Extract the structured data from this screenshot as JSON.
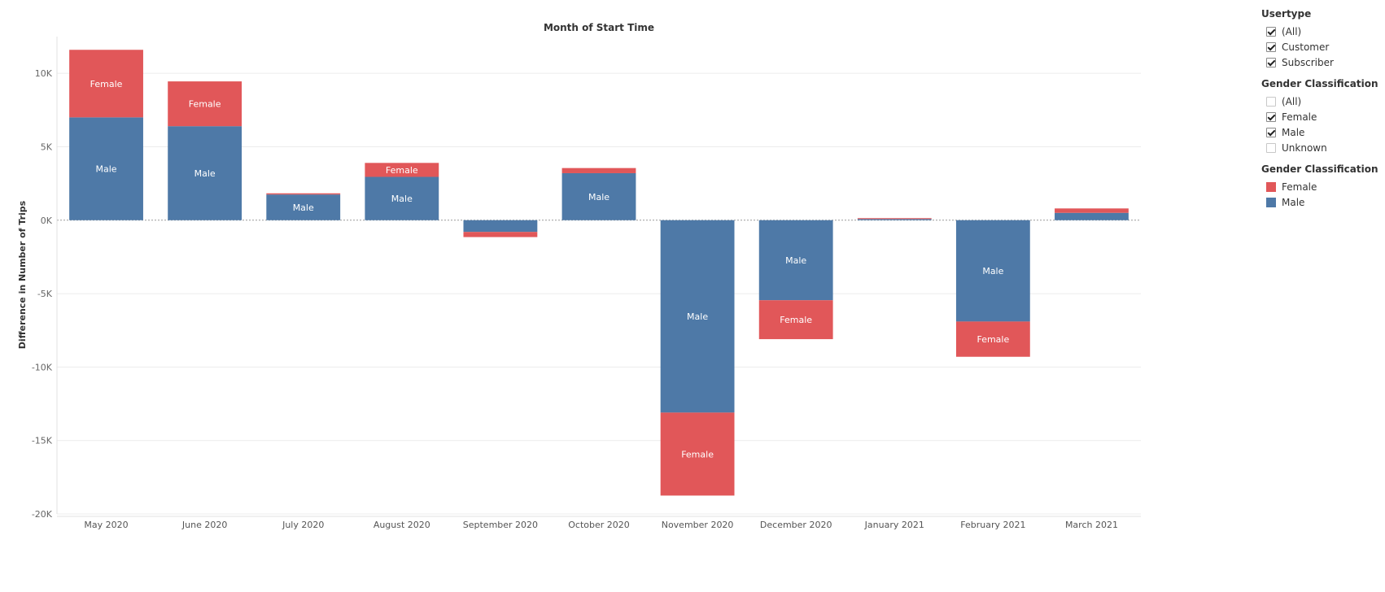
{
  "chart_data": {
    "type": "bar",
    "stacked": true,
    "title": "Month of Start Time",
    "xlabel": "",
    "ylabel": "Difference in Number of Trips",
    "ylim": [
      -20000,
      12500
    ],
    "yticks": [
      {
        "value": 10000,
        "label": "10K"
      },
      {
        "value": 5000,
        "label": "5K"
      },
      {
        "value": 0,
        "label": "0K"
      },
      {
        "value": -5000,
        "label": "-5K"
      },
      {
        "value": -10000,
        "label": "-10K"
      },
      {
        "value": -15000,
        "label": "-15K"
      },
      {
        "value": -20000,
        "label": "-20K"
      }
    ],
    "categories": [
      "May 2020",
      "June 2020",
      "July 2020",
      "August 2020",
      "September 2020",
      "October 2020",
      "November 2020",
      "December 2020",
      "January 2021",
      "February 2021",
      "March 2021"
    ],
    "series": [
      {
        "name": "Male",
        "color": "#4e79a7",
        "values": [
          7000,
          6400,
          1750,
          2950,
          -800,
          3200,
          -13100,
          -5450,
          80,
          -6900,
          500
        ]
      },
      {
        "name": "Female",
        "color": "#e15759",
        "values": [
          4600,
          3050,
          80,
          950,
          -350,
          350,
          -5650,
          -2650,
          60,
          -2400,
          300
        ]
      }
    ],
    "bar_labels": [
      [
        "Male",
        "Female"
      ],
      [
        "Male",
        "Female"
      ],
      [
        "Male",
        ""
      ],
      [
        "Male",
        "Female"
      ],
      [
        "",
        ""
      ],
      [
        "Male",
        ""
      ],
      [
        "Male",
        "Female"
      ],
      [
        "Male",
        "Female"
      ],
      [
        "",
        ""
      ],
      [
        "Male",
        "Female"
      ],
      [
        "",
        ""
      ]
    ],
    "grid": true,
    "legend": "right"
  },
  "filters": [
    {
      "title": "Usertype",
      "items": [
        {
          "label": "(All)",
          "checked": true
        },
        {
          "label": "Customer",
          "checked": true
        },
        {
          "label": "Subscriber",
          "checked": true
        }
      ]
    },
    {
      "title": "Gender Classification",
      "items": [
        {
          "label": "(All)",
          "checked": false
        },
        {
          "label": "Female",
          "checked": true
        },
        {
          "label": "Male",
          "checked": true
        },
        {
          "label": "Unknown",
          "checked": false
        }
      ]
    }
  ],
  "legend": {
    "title": "Gender Classification",
    "items": [
      {
        "label": "Female",
        "color": "#e15759"
      },
      {
        "label": "Male",
        "color": "#4e79a7"
      }
    ]
  }
}
